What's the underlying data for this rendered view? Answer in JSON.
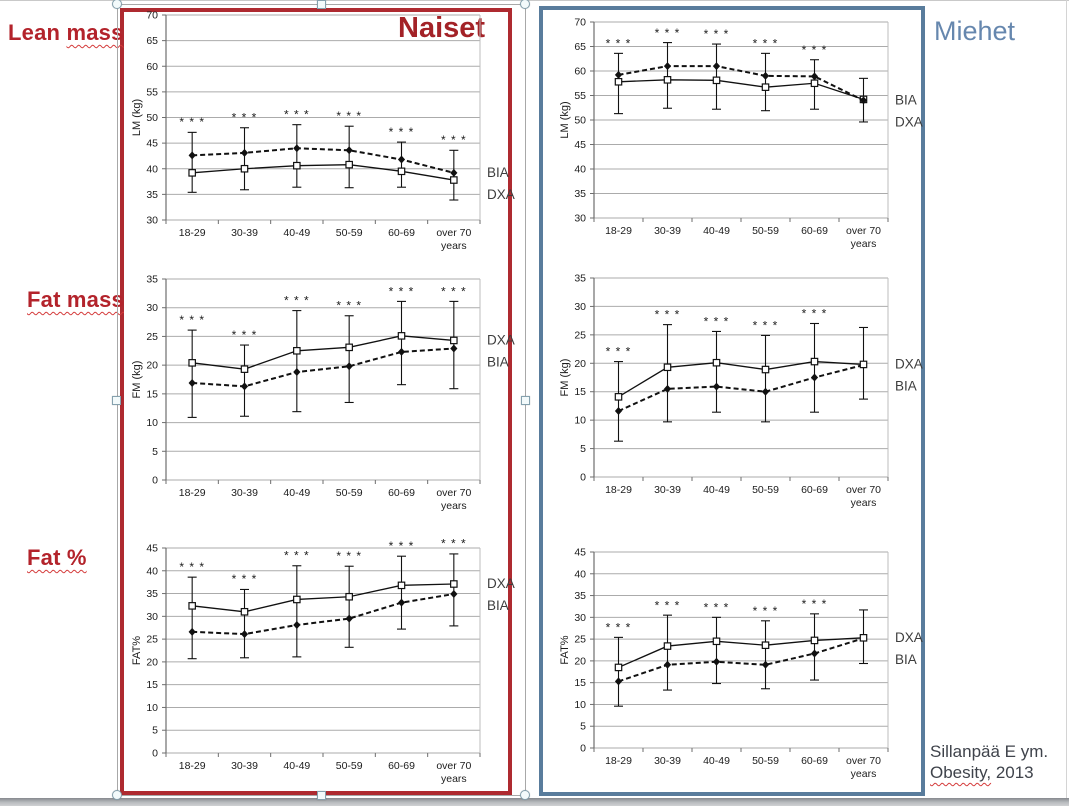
{
  "slide": {
    "row_labels": {
      "lean": {
        "plain": "Lean ",
        "wavy": "mass"
      },
      "fat_mass": {
        "plain": "",
        "wavy": "Fat mass"
      },
      "fat_pct": {
        "plain": "",
        "wavy": "Fat %"
      }
    },
    "panel_titles": {
      "naiset": "Naiset",
      "miehet": "Miehet"
    },
    "citation": {
      "line1": "Sillanpää E ym.",
      "line2_wavy": "Obesity,",
      "line2_rest": " 2013"
    },
    "colors": {
      "red_border": "#AE2A30",
      "red_text": "#B3232B",
      "blue_border": "#597C9C",
      "blue_text": "#6687AE",
      "chart_ink": "#1c1c1c",
      "gridline": "#ababab"
    },
    "significance_marker": "* * *"
  },
  "chart_data": [
    {
      "id": "naiset-lean-mass",
      "type": "line",
      "panel": "Naiset",
      "measure": "Lean mass",
      "ylabel": "LM (kg)",
      "ymin": 30,
      "ymax": 70,
      "ystep": 5,
      "categories": [
        "18-29",
        "30-39",
        "40-49",
        "50-59",
        "60-69",
        "over 70"
      ],
      "last_category_line2": "years",
      "series": [
        {
          "name": "BIA",
          "line": "dashed",
          "marker": "filled-diamond",
          "values": [
            42.6,
            43.1,
            44.0,
            43.6,
            41.8,
            39.2
          ]
        },
        {
          "name": "DXA",
          "line": "solid",
          "marker": "open-square",
          "values": [
            39.2,
            40.0,
            40.6,
            40.8,
            39.5,
            37.8
          ]
        }
      ],
      "whisker_low": [
        35.4,
        35.9,
        36.4,
        36.3,
        36.4,
        33.9
      ],
      "whisker_high": [
        47.1,
        48.0,
        48.6,
        48.3,
        45.2,
        43.6
      ],
      "stars": [
        true,
        true,
        true,
        true,
        true,
        true
      ]
    },
    {
      "id": "miehet-lean-mass",
      "type": "line",
      "panel": "Miehet",
      "measure": "Lean mass",
      "ylabel": "LM (kg)",
      "ymin": 30,
      "ymax": 70,
      "ystep": 5,
      "categories": [
        "18-29",
        "30-39",
        "40-49",
        "50-59",
        "60-69",
        "over 70"
      ],
      "last_category_line2": "years",
      "series": [
        {
          "name": "BIA",
          "line": "dashed",
          "marker": "filled-diamond",
          "values": [
            59.2,
            61.0,
            61.0,
            59.0,
            58.9,
            54.0
          ]
        },
        {
          "name": "DXA",
          "line": "solid",
          "marker": "open-square",
          "values": [
            57.8,
            58.2,
            58.1,
            56.7,
            57.5,
            54.2
          ]
        }
      ],
      "whisker_low": [
        51.3,
        52.4,
        52.2,
        51.9,
        52.2,
        49.6
      ],
      "whisker_high": [
        63.6,
        65.8,
        65.5,
        63.6,
        62.3,
        58.5
      ],
      "stars": [
        true,
        true,
        true,
        true,
        true,
        false
      ]
    },
    {
      "id": "naiset-fat-mass",
      "type": "line",
      "panel": "Naiset",
      "measure": "Fat mass",
      "ylabel": "FM (kg)",
      "ymin": 0,
      "ymax": 35,
      "ystep": 5,
      "categories": [
        "18-29",
        "30-39",
        "40-49",
        "50-59",
        "60-69",
        "over 70"
      ],
      "last_category_line2": "years",
      "series": [
        {
          "name": "DXA",
          "line": "solid",
          "marker": "open-square",
          "values": [
            20.4,
            19.3,
            22.5,
            23.1,
            25.1,
            24.3
          ]
        },
        {
          "name": "BIA",
          "line": "dashed",
          "marker": "filled-diamond",
          "values": [
            16.9,
            16.3,
            18.8,
            19.8,
            22.3,
            22.9
          ]
        }
      ],
      "whisker_low": [
        10.9,
        11.1,
        11.9,
        13.5,
        16.6,
        15.9
      ],
      "whisker_high": [
        26.1,
        23.5,
        29.5,
        28.6,
        31.1,
        31.1
      ],
      "stars": [
        true,
        true,
        true,
        true,
        true,
        true
      ]
    },
    {
      "id": "miehet-fat-mass",
      "type": "line",
      "panel": "Miehet",
      "measure": "Fat mass",
      "ylabel": "FM (kg)",
      "ymin": 0,
      "ymax": 35,
      "ystep": 5,
      "categories": [
        "18-29",
        "30-39",
        "40-49",
        "50-59",
        "60-69",
        "over 70"
      ],
      "last_category_line2": "years",
      "series": [
        {
          "name": "DXA",
          "line": "solid",
          "marker": "open-square",
          "values": [
            14.1,
            19.3,
            20.1,
            18.9,
            20.3,
            19.8
          ]
        },
        {
          "name": "BIA",
          "line": "dashed",
          "marker": "filled-diamond",
          "values": [
            11.6,
            15.5,
            15.9,
            15.0,
            17.5,
            19.7
          ]
        }
      ],
      "whisker_low": [
        6.3,
        9.7,
        11.4,
        9.7,
        11.4,
        13.7
      ],
      "whisker_high": [
        20.3,
        26.8,
        25.6,
        24.9,
        27.0,
        26.3
      ],
      "stars": [
        true,
        true,
        true,
        true,
        true,
        false
      ]
    },
    {
      "id": "naiset-fat-pct",
      "type": "line",
      "panel": "Naiset",
      "measure": "Fat %",
      "ylabel": "FAT%",
      "ymin": 0,
      "ymax": 45,
      "ystep": 5,
      "categories": [
        "18-29",
        "30-39",
        "40-49",
        "50-59",
        "60-69",
        "over 70"
      ],
      "last_category_line2": "years",
      "series": [
        {
          "name": "DXA",
          "line": "solid",
          "marker": "open-square",
          "values": [
            32.3,
            31.0,
            33.7,
            34.3,
            36.8,
            37.1
          ]
        },
        {
          "name": "BIA",
          "line": "dashed",
          "marker": "filled-diamond",
          "values": [
            26.6,
            26.1,
            28.1,
            29.5,
            33.0,
            34.9
          ]
        }
      ],
      "whisker_low": [
        20.7,
        20.9,
        21.1,
        23.2,
        27.2,
        27.9
      ],
      "whisker_high": [
        38.6,
        35.9,
        41.1,
        41.0,
        43.2,
        43.7
      ],
      "stars": [
        true,
        true,
        true,
        true,
        true,
        true
      ]
    },
    {
      "id": "miehet-fat-pct",
      "type": "line",
      "panel": "Miehet",
      "measure": "Fat %",
      "ylabel": "FAT%",
      "ymin": 0,
      "ymax": 45,
      "ystep": 5,
      "categories": [
        "18-29",
        "30-39",
        "40-49",
        "50-59",
        "60-69",
        "over 70"
      ],
      "last_category_line2": "years",
      "series": [
        {
          "name": "DXA",
          "line": "solid",
          "marker": "open-square",
          "values": [
            18.5,
            23.4,
            24.5,
            23.6,
            24.7,
            25.3
          ]
        },
        {
          "name": "BIA",
          "line": "dashed",
          "marker": "filled-diamond",
          "values": [
            15.3,
            19.1,
            19.8,
            19.1,
            21.7,
            25.2
          ]
        }
      ],
      "whisker_low": [
        9.6,
        13.3,
        14.8,
        13.6,
        15.6,
        19.4
      ],
      "whisker_high": [
        25.4,
        30.5,
        30.0,
        29.2,
        30.8,
        31.7
      ],
      "stars": [
        true,
        true,
        true,
        true,
        true,
        false
      ]
    }
  ]
}
